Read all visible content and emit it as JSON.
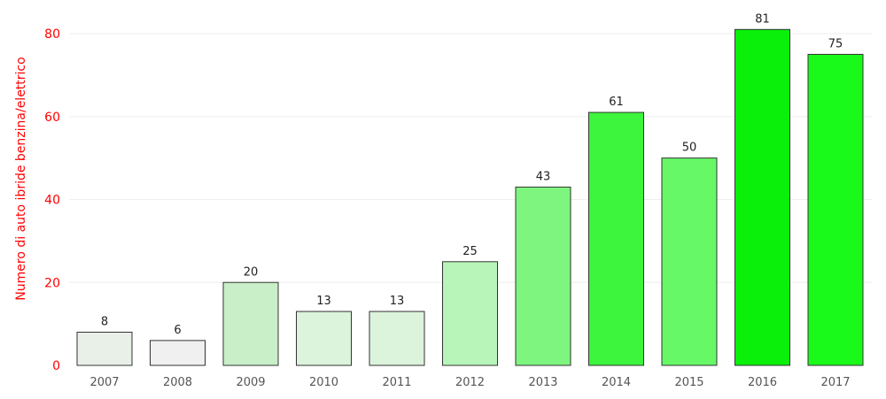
{
  "chart_data": {
    "type": "bar",
    "ylabel": "Numero di auto ibride benzina/elettrico",
    "categories": [
      "2007",
      "2008",
      "2009",
      "2010",
      "2011",
      "2012",
      "2013",
      "2014",
      "2015",
      "2016",
      "2017"
    ],
    "values": [
      8,
      6,
      20,
      13,
      13,
      25,
      43,
      61,
      50,
      81,
      75
    ],
    "colors": [
      "#e8f0e8",
      "#f0f0f0",
      "#c8efc8",
      "#dcf3dc",
      "#dcf3dc",
      "#b8f5b8",
      "#7ef57e",
      "#3cf53c",
      "#66f866",
      "#0af00a",
      "#1afa1a"
    ],
    "ylim": [
      0,
      84
    ],
    "yticks": [
      0,
      20,
      40,
      60,
      80
    ],
    "grid": true,
    "axis_label_color": "#ff0000"
  }
}
